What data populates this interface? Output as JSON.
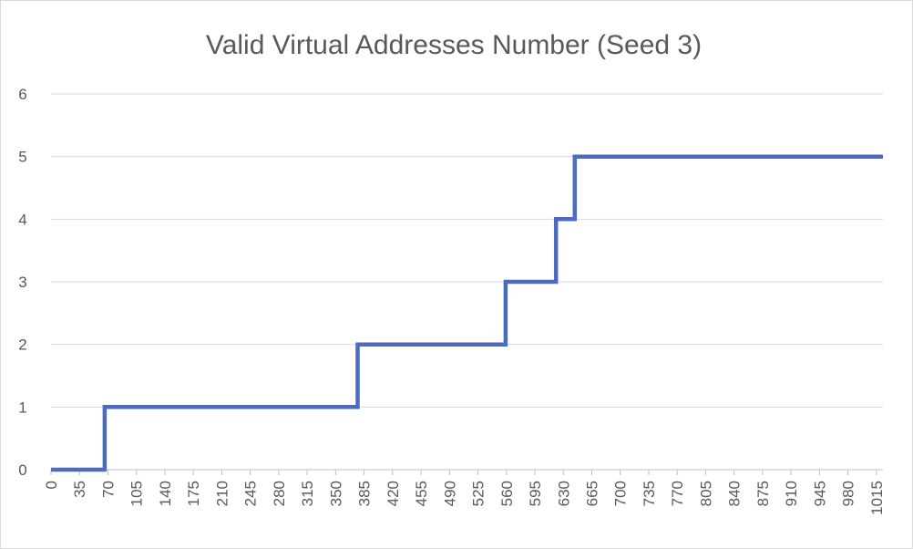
{
  "chart_data": {
    "type": "line",
    "title": "Valid Virtual Addresses Number (Seed 3)",
    "xlabel": "",
    "ylabel": "",
    "ylim": [
      0,
      6
    ],
    "y_ticks": [
      0,
      1,
      2,
      3,
      4,
      5,
      6
    ],
    "xlim": [
      0,
      1023
    ],
    "x_ticks": [
      0,
      35,
      70,
      105,
      140,
      175,
      210,
      245,
      280,
      315,
      350,
      385,
      420,
      455,
      490,
      525,
      560,
      595,
      630,
      665,
      700,
      735,
      770,
      805,
      840,
      875,
      910,
      945,
      980,
      1015
    ],
    "grid": true,
    "legend": "none",
    "series": [
      {
        "color": "#4a6bbf",
        "x": [
          0,
          66,
          66,
          377,
          377,
          559,
          559,
          621,
          621,
          644,
          644,
          1023
        ],
        "values": [
          0,
          0,
          1,
          1,
          2,
          2,
          3,
          3,
          4,
          4,
          5,
          5
        ]
      }
    ]
  }
}
